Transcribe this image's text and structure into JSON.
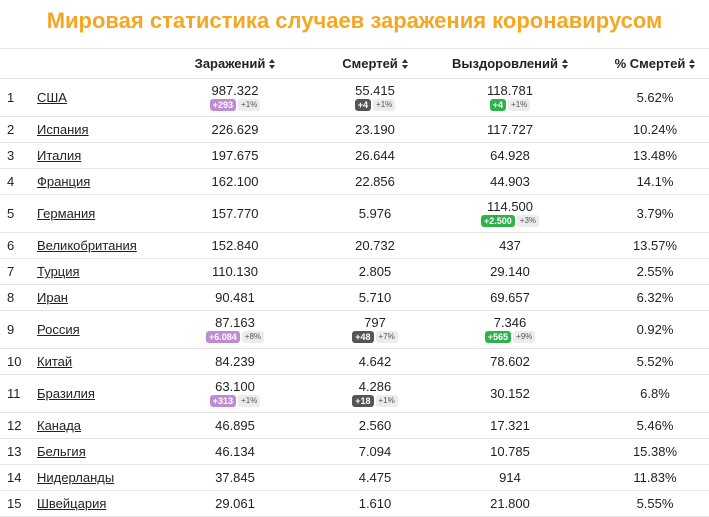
{
  "title": "Мировая статистика случаев заражения коронавирусом",
  "headers": {
    "cases": "Заражений",
    "deaths": "Смертей",
    "recovered": "Выздоровлений",
    "death_pct": "% Смертей"
  },
  "rows": [
    {
      "rank": "1",
      "country": "США",
      "cases": "987.322",
      "cases_new": "+293",
      "cases_pct": "+1%",
      "deaths": "55.415",
      "deaths_new": "+4",
      "deaths_pct": "+1%",
      "recovered": "118.781",
      "rec_new": "+4",
      "rec_pct": "+1%",
      "death_pct": "5.62%"
    },
    {
      "rank": "2",
      "country": "Испания",
      "cases": "226.629",
      "deaths": "23.190",
      "recovered": "117.727",
      "death_pct": "10.24%"
    },
    {
      "rank": "3",
      "country": "Италия",
      "cases": "197.675",
      "deaths": "26.644",
      "recovered": "64.928",
      "death_pct": "13.48%"
    },
    {
      "rank": "4",
      "country": "Франция",
      "cases": "162.100",
      "deaths": "22.856",
      "recovered": "44.903",
      "death_pct": "14.1%"
    },
    {
      "rank": "5",
      "country": "Германия",
      "cases": "157.770",
      "deaths": "5.976",
      "recovered": "114.500",
      "rec_new": "+2.500",
      "rec_pct": "+3%",
      "death_pct": "3.79%"
    },
    {
      "rank": "6",
      "country": "Великобритания",
      "cases": "152.840",
      "deaths": "20.732",
      "recovered": "437",
      "death_pct": "13.57%"
    },
    {
      "rank": "7",
      "country": "Турция",
      "cases": "110.130",
      "deaths": "2.805",
      "recovered": "29.140",
      "death_pct": "2.55%"
    },
    {
      "rank": "8",
      "country": "Иран",
      "cases": "90.481",
      "deaths": "5.710",
      "recovered": "69.657",
      "death_pct": "6.32%"
    },
    {
      "rank": "9",
      "country": "Россия",
      "cases": "87.163",
      "cases_new": "+6.084",
      "cases_pct": "+8%",
      "deaths": "797",
      "deaths_new": "+48",
      "deaths_pct": "+7%",
      "recovered": "7.346",
      "rec_new": "+565",
      "rec_pct": "+9%",
      "death_pct": "0.92%"
    },
    {
      "rank": "10",
      "country": "Китай",
      "cases": "84.239",
      "deaths": "4.642",
      "recovered": "78.602",
      "death_pct": "5.52%"
    },
    {
      "rank": "11",
      "country": "Бразилия",
      "cases": "63.100",
      "cases_new": "+313",
      "cases_pct": "+1%",
      "deaths": "4.286",
      "deaths_new": "+18",
      "deaths_pct": "+1%",
      "recovered": "30.152",
      "death_pct": "6.8%"
    },
    {
      "rank": "12",
      "country": "Канада",
      "cases": "46.895",
      "deaths": "2.560",
      "recovered": "17.321",
      "death_pct": "5.46%"
    },
    {
      "rank": "13",
      "country": "Бельгия",
      "cases": "46.134",
      "deaths": "7.094",
      "recovered": "10.785",
      "death_pct": "15.38%"
    },
    {
      "rank": "14",
      "country": "Нидерланды",
      "cases": "37.845",
      "deaths": "4.475",
      "recovered": "914",
      "death_pct": "11.83%"
    },
    {
      "rank": "15",
      "country": "Швейцария",
      "cases": "29.061",
      "deaths": "1.610",
      "recovered": "21.800",
      "death_pct": "5.55%"
    }
  ]
}
